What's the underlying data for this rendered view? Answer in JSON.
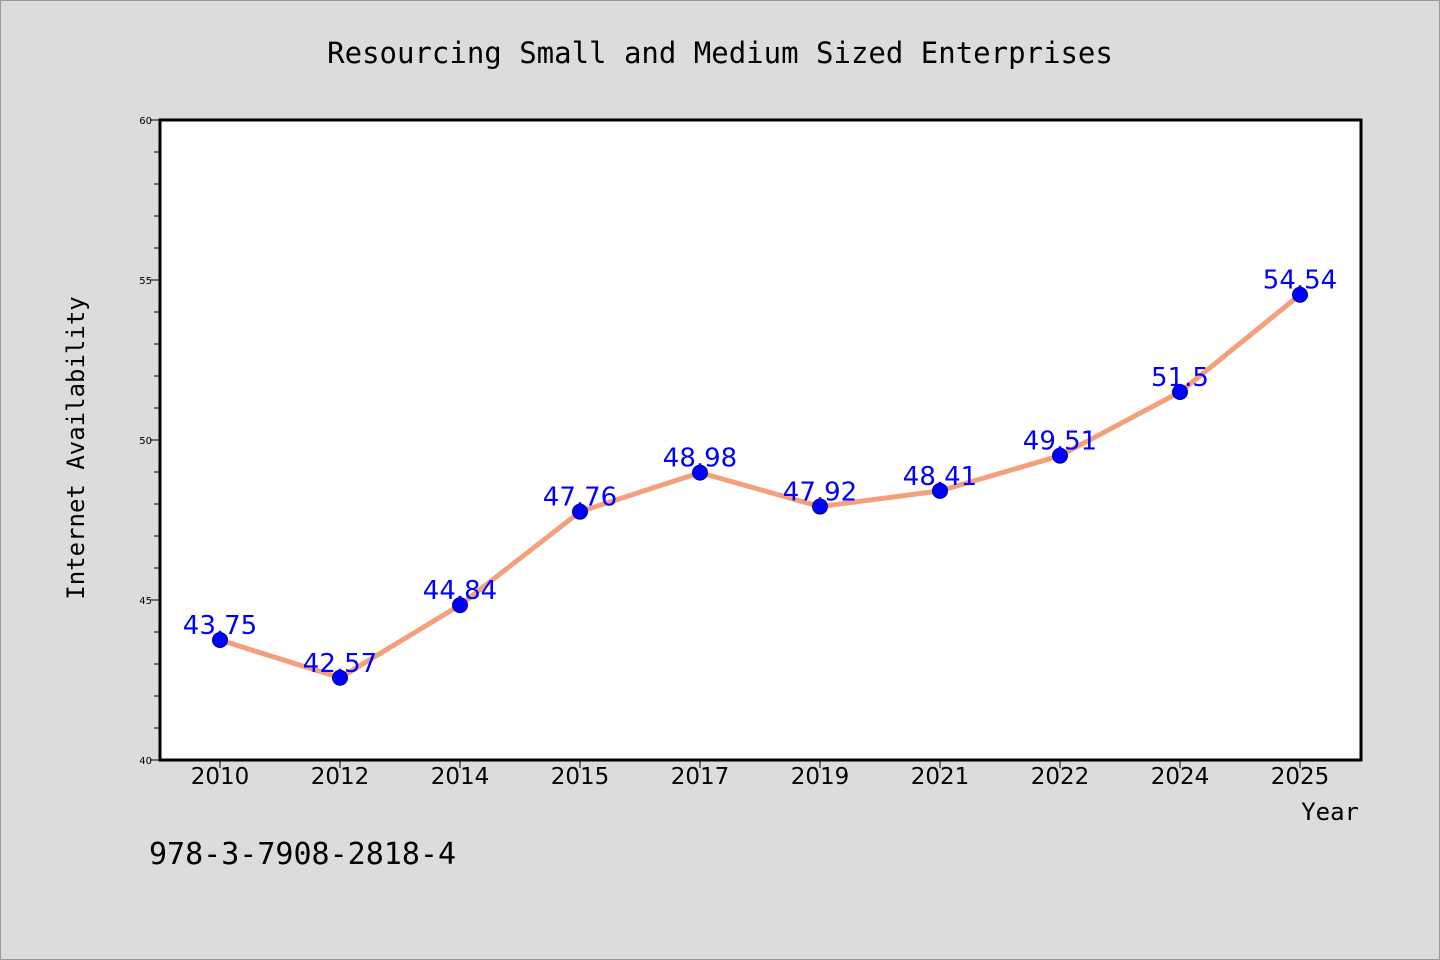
{
  "chart_data": {
    "type": "line",
    "title": "Resourcing Small and Medium Sized Enterprises",
    "xlabel": "Year",
    "ylabel": "Internet Availability",
    "categories": [
      "2010",
      "2012",
      "2014",
      "2015",
      "2017",
      "2019",
      "2021",
      "2022",
      "2024",
      "2025"
    ],
    "series": [
      {
        "values": [
          43.75,
          42.57,
          44.84,
          47.76,
          48.98,
          47.92,
          48.41,
          49.51,
          51.5,
          54.54
        ],
        "data_labels": [
          "43.75",
          "42.57",
          "44.84",
          "47.76",
          "48.98",
          "47.92",
          "48.41",
          "49.51",
          "51.5",
          "54.54"
        ]
      }
    ],
    "ylim": [
      40,
      60
    ],
    "yticks": [
      "40",
      "45",
      "50",
      "55",
      "60"
    ],
    "grid": false,
    "legend": "none",
    "colors": {
      "line": "#f4a07c",
      "marker": "#0000ff",
      "data_label": "#0000ff",
      "background": "#dcdcdc",
      "plot_background": "#ffffff"
    }
  },
  "footnote": "978-3-7908-2818-4"
}
